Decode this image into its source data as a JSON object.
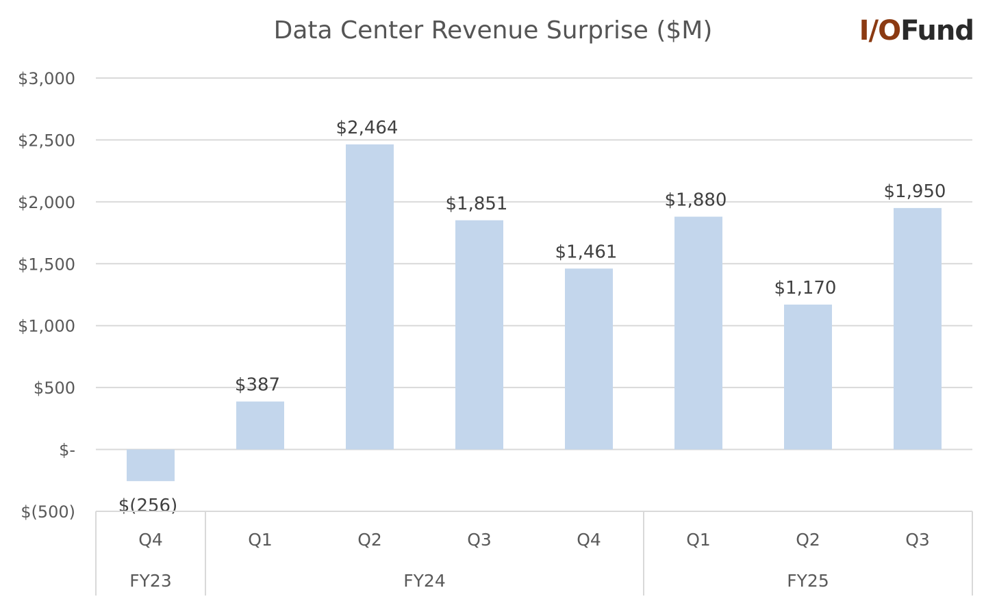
{
  "chart_data": {
    "type": "bar",
    "title": "Data Center Revenue Surprise ($M)",
    "categories": [
      "Q4",
      "Q1",
      "Q2",
      "Q3",
      "Q4",
      "Q1",
      "Q2",
      "Q3"
    ],
    "groups": [
      {
        "label": "FY23",
        "count": 1
      },
      {
        "label": "FY24",
        "count": 4
      },
      {
        "label": "FY25",
        "count": 3
      }
    ],
    "values": [
      -256,
      387,
      2464,
      1851,
      1461,
      1880,
      1170,
      1950
    ],
    "data_labels": [
      "$(256)",
      "$387",
      "$2,464",
      "$1,851",
      "$1,461",
      "$1,880",
      "$1,170",
      "$1,950"
    ],
    "ylim": [
      -500,
      3000
    ],
    "yticks": [
      -500,
      0,
      500,
      1000,
      1500,
      2000,
      2500,
      3000
    ],
    "ytick_labels": [
      "$(500)",
      "$-",
      "$500",
      "$1,000",
      "$1,500",
      "$2,000",
      "$2,500",
      "$3,000"
    ],
    "grid": true,
    "bar_color": "#c3d6ec",
    "grid_color": "#d9d9d9",
    "text_color": "#404040"
  },
  "branding": {
    "logo_part1": "I/O",
    "logo_part2": "Fund"
  }
}
